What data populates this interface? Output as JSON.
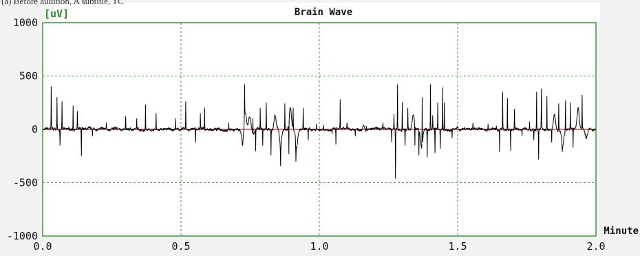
{
  "caption": "(a) Before audition, A subtitle, TC",
  "chart_data": {
    "type": "line",
    "title": "Brain Wave",
    "xlabel": "Minute",
    "ylabel": "[uV]",
    "xlim": [
      0,
      2.0
    ],
    "ylim": [
      -1000,
      1000
    ],
    "x_ticks": [
      "0.0",
      "0.5",
      "1.0",
      "1.5",
      "2.0"
    ],
    "y_ticks": [
      "1000",
      "500",
      "0",
      "-500",
      "-1000"
    ],
    "grid": true,
    "colors": {
      "plot_bg": "#ffffff",
      "frame": "#3a9a3a",
      "grid": "#3a9a3a",
      "trace": "#000000",
      "baseline": "#cc2222",
      "ylabel": "#2a8a2a"
    },
    "baseline": 0,
    "spikes": [
      {
        "x": 0.031,
        "y": 400
      },
      {
        "x": 0.052,
        "y": 300
      },
      {
        "x": 0.063,
        "y": -150
      },
      {
        "x": 0.07,
        "y": 260
      },
      {
        "x": 0.11,
        "y": 220
      },
      {
        "x": 0.125,
        "y": 170
      },
      {
        "x": 0.14,
        "y": -250
      },
      {
        "x": 0.18,
        "y": -60
      },
      {
        "x": 0.23,
        "y": 60
      },
      {
        "x": 0.3,
        "y": 120
      },
      {
        "x": 0.34,
        "y": 100
      },
      {
        "x": 0.372,
        "y": 230
      },
      {
        "x": 0.41,
        "y": 150
      },
      {
        "x": 0.48,
        "y": 100
      },
      {
        "x": 0.517,
        "y": 260
      },
      {
        "x": 0.553,
        "y": -120
      },
      {
        "x": 0.57,
        "y": 150
      },
      {
        "x": 0.585,
        "y": 200
      },
      {
        "x": 0.673,
        "y": 60
      },
      {
        "x": 0.723,
        "y": -150
      },
      {
        "x": 0.73,
        "y": 420
      },
      {
        "x": 0.76,
        "y": 100
      },
      {
        "x": 0.77,
        "y": -200
      },
      {
        "x": 0.786,
        "y": 200
      },
      {
        "x": 0.795,
        "y": -150
      },
      {
        "x": 0.808,
        "y": 250
      },
      {
        "x": 0.825,
        "y": -240
      },
      {
        "x": 0.86,
        "y": -340
      },
      {
        "x": 0.875,
        "y": 240
      },
      {
        "x": 0.89,
        "y": -230
      },
      {
        "x": 0.905,
        "y": 200
      },
      {
        "x": 0.915,
        "y": -300
      },
      {
        "x": 0.942,
        "y": 200
      },
      {
        "x": 0.96,
        "y": -100
      },
      {
        "x": 0.99,
        "y": 50
      },
      {
        "x": 1.015,
        "y": 40
      },
      {
        "x": 1.046,
        "y": -40
      },
      {
        "x": 1.06,
        "y": -140
      },
      {
        "x": 1.075,
        "y": 280
      },
      {
        "x": 1.1,
        "y": 60
      },
      {
        "x": 1.13,
        "y": -60
      },
      {
        "x": 1.17,
        "y": 30
      },
      {
        "x": 1.23,
        "y": 60
      },
      {
        "x": 1.262,
        "y": -120
      },
      {
        "x": 1.27,
        "y": 140
      },
      {
        "x": 1.275,
        "y": -460
      },
      {
        "x": 1.283,
        "y": 420
      },
      {
        "x": 1.3,
        "y": 250
      },
      {
        "x": 1.31,
        "y": -150
      },
      {
        "x": 1.32,
        "y": 200
      },
      {
        "x": 1.345,
        "y": -150
      },
      {
        "x": 1.36,
        "y": -240
      },
      {
        "x": 1.372,
        "y": 300
      },
      {
        "x": 1.39,
        "y": -260
      },
      {
        "x": 1.402,
        "y": 420
      },
      {
        "x": 1.41,
        "y": 130
      },
      {
        "x": 1.418,
        "y": -220
      },
      {
        "x": 1.428,
        "y": 250
      },
      {
        "x": 1.437,
        "y": -180
      },
      {
        "x": 1.445,
        "y": 390
      },
      {
        "x": 1.452,
        "y": 250
      },
      {
        "x": 1.48,
        "y": -80
      },
      {
        "x": 1.5,
        "y": 30
      },
      {
        "x": 1.555,
        "y": 60
      },
      {
        "x": 1.61,
        "y": 50
      },
      {
        "x": 1.64,
        "y": 30
      },
      {
        "x": 1.652,
        "y": -210
      },
      {
        "x": 1.663,
        "y": 350
      },
      {
        "x": 1.68,
        "y": 290
      },
      {
        "x": 1.692,
        "y": -200
      },
      {
        "x": 1.705,
        "y": 190
      },
      {
        "x": 1.733,
        "y": -60
      },
      {
        "x": 1.76,
        "y": 70
      },
      {
        "x": 1.775,
        "y": -100
      },
      {
        "x": 1.785,
        "y": 350
      },
      {
        "x": 1.793,
        "y": -280
      },
      {
        "x": 1.803,
        "y": 380
      },
      {
        "x": 1.823,
        "y": 310
      },
      {
        "x": 1.84,
        "y": -120
      },
      {
        "x": 1.865,
        "y": 240
      },
      {
        "x": 1.878,
        "y": -210
      },
      {
        "x": 1.89,
        "y": 270
      },
      {
        "x": 1.907,
        "y": 250
      },
      {
        "x": 1.917,
        "y": -170
      },
      {
        "x": 1.95,
        "y": 320
      },
      {
        "x": 1.962,
        "y": -40
      },
      {
        "x": 1.99,
        "y": -20
      }
    ],
    "slow_waves": [
      {
        "x": 0.723,
        "y": -120
      },
      {
        "x": 0.733,
        "y": 150
      },
      {
        "x": 0.748,
        "y": 120
      },
      {
        "x": 0.762,
        "y": -60
      },
      {
        "x": 0.84,
        "y": 120
      },
      {
        "x": 0.86,
        "y": -150
      },
      {
        "x": 0.895,
        "y": 200
      },
      {
        "x": 0.918,
        "y": -160
      },
      {
        "x": 1.16,
        "y": 50
      },
      {
        "x": 1.34,
        "y": 150
      },
      {
        "x": 1.37,
        "y": -180
      },
      {
        "x": 1.85,
        "y": 150
      },
      {
        "x": 1.88,
        "y": -140
      },
      {
        "x": 1.935,
        "y": 200
      },
      {
        "x": 1.965,
        "y": -80
      }
    ]
  }
}
